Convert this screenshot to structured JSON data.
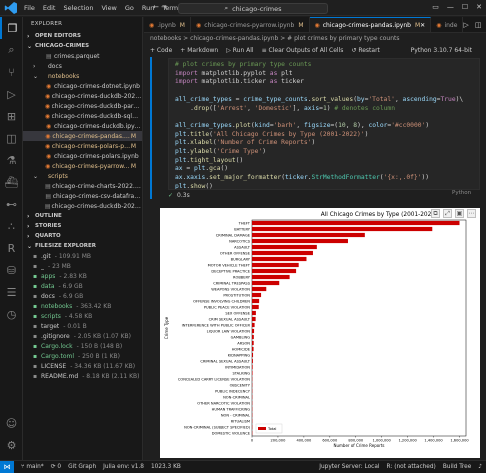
{
  "titlebar": {
    "menu": [
      "File",
      "Edit",
      "Selection",
      "View",
      "Go",
      "Run",
      "Terminal",
      "..."
    ],
    "search": "chicago-crimes"
  },
  "sidebar": {
    "header": "EXPLORER",
    "open_editors": "OPEN EDITORS",
    "project": "CHICAGO-CRIMES",
    "files": [
      {
        "name": "crimes.parquet",
        "indent": 2,
        "kind": "file",
        "badge": ""
      },
      {
        "name": "docs",
        "indent": 1,
        "kind": "folder-closed",
        "badge": ""
      },
      {
        "name": "notebooks",
        "indent": 1,
        "kind": "folder-open",
        "badge": "",
        "status": "mod"
      },
      {
        "name": "chicago-crimes-dotnet.ipynb",
        "indent": 2,
        "kind": "nb",
        "badge": ""
      },
      {
        "name": "chicago-crimes-duckdb-2022.ipynb",
        "indent": 2,
        "kind": "nb",
        "badge": ""
      },
      {
        "name": "chicago-crimes-duckdb-parquet.ip...",
        "indent": 2,
        "kind": "nb",
        "badge": ""
      },
      {
        "name": "chicago-crimes-duckdb-sqlmagic.i...",
        "indent": 2,
        "kind": "nb",
        "badge": ""
      },
      {
        "name": "chicago-crimes-duckdb.ipynb",
        "indent": 2,
        "kind": "nb",
        "badge": ""
      },
      {
        "name": "chicago-crimes-pandas.ipynb",
        "indent": 2,
        "kind": "nb",
        "badge": "M",
        "sel": true
      },
      {
        "name": "chicago-crimes-polars-parqu...",
        "indent": 2,
        "kind": "nb",
        "badge": "M"
      },
      {
        "name": "chicago-crimes-polars.ipynb",
        "indent": 2,
        "kind": "nb",
        "badge": ""
      },
      {
        "name": "chicago-crimes-pyarrow.ipynb",
        "indent": 2,
        "kind": "nb",
        "badge": "M"
      },
      {
        "name": "scripts",
        "indent": 1,
        "kind": "folder-open",
        "badge": "",
        "status": "mod"
      },
      {
        "name": "chicago-crime-charts-2022.malloy",
        "indent": 2,
        "kind": "file",
        "badge": ""
      },
      {
        "name": "chicago-crimes-csv-dataframe.js",
        "indent": 2,
        "kind": "file",
        "badge": ""
      },
      {
        "name": "chicago-crimes-duckdb-2022.malloy",
        "indent": 2,
        "kind": "file",
        "badge": ""
      }
    ],
    "sections": [
      "OUTLINE",
      "STORIES",
      "QUARTO"
    ],
    "filesize_explorer": "FILESIZE EXPLORER",
    "sizes": [
      {
        "name": ".git",
        "size": "109.91 MB",
        "indent": 1
      },
      {
        "name": "_",
        "size": "23 MB",
        "indent": 1
      },
      {
        "name": "apps",
        "size": "2.83 KB",
        "indent": 1,
        "green": true
      },
      {
        "name": "data",
        "size": "6.9 GB",
        "indent": 1,
        "green": true
      },
      {
        "name": "docs",
        "size": "6.9 GB",
        "indent": 1
      },
      {
        "name": "notebooks",
        "size": "363.42 KB",
        "indent": 1,
        "green": true
      },
      {
        "name": "scripts",
        "size": "4.58 KB",
        "indent": 1,
        "green": true
      },
      {
        "name": "target",
        "size": "0.01 B",
        "indent": 1
      },
      {
        "name": ".gitignore",
        "size": "2.05 KB (1.07 KB)",
        "indent": 1
      },
      {
        "name": "Cargo.lock",
        "size": "150 B (148 B)",
        "indent": 1,
        "green": true
      },
      {
        "name": "Cargo.toml",
        "size": "250 B (1 KB)",
        "indent": 1,
        "green": true
      },
      {
        "name": "LICENSE",
        "size": "34.36 KB (11.67 KB)",
        "indent": 1
      },
      {
        "name": "README.md",
        "size": "8.18 KB (2.11 KB)",
        "indent": 1
      }
    ]
  },
  "tabs": [
    {
      "label": ".ipynb",
      "mod": "M",
      "active": false
    },
    {
      "label": "chicago-crimes-pyarrow.ipynb",
      "mod": "M",
      "active": false
    },
    {
      "label": "chicago-crimes-pandas.ipynb",
      "mod": "M",
      "active": true
    },
    {
      "label": "inde",
      "mod": "",
      "active": false
    }
  ],
  "breadcrumb": "notebooks > chicago-crimes-pandas.ipynb > # plot crimes by primary type counts",
  "nb_toolbar": {
    "code": "+ Code",
    "markdown": "+ Markdown",
    "run_all": "▷ Run All",
    "clear": "≡ Clear Outputs of All Cells",
    "restart": "↺ Restart",
    "kernel": "Python 3.10.7 64-bit"
  },
  "cell": {
    "language": "Python",
    "exec_time": "0.3s",
    "lines": [
      [
        [
          "c-com",
          "# plot crimes by primary type counts"
        ]
      ],
      [
        [
          "c-kw",
          "import"
        ],
        [
          "c-def",
          " matplotlib.pyplot "
        ],
        [
          "c-kw",
          "as"
        ],
        [
          "c-def",
          " plt"
        ]
      ],
      [
        [
          "c-kw",
          "import"
        ],
        [
          "c-def",
          " matplotlib.ticker "
        ],
        [
          "c-kw",
          "as"
        ],
        [
          "c-def",
          " ticker"
        ]
      ],
      [
        [
          "c-def",
          ""
        ]
      ],
      [
        [
          "c-var",
          "all_crime_types"
        ],
        [
          "c-def",
          " = "
        ],
        [
          "c-var",
          "crime_type_counts"
        ],
        [
          "c-def",
          "."
        ],
        [
          "c-fn",
          "sort_values"
        ],
        [
          "c-def",
          "("
        ],
        [
          "c-var",
          "by"
        ],
        [
          "c-def",
          "="
        ],
        [
          "c-str",
          "'Total'"
        ],
        [
          "c-def",
          ", "
        ],
        [
          "c-var",
          "ascending"
        ],
        [
          "c-def",
          "="
        ],
        [
          "c-kw",
          "True"
        ],
        [
          "c-def",
          ")\\"
        ]
      ],
      [
        [
          "c-def",
          "    ."
        ],
        [
          "c-fn",
          "drop"
        ],
        [
          "c-def",
          "(["
        ],
        [
          "c-str",
          "'Arrest'"
        ],
        [
          "c-def",
          ", "
        ],
        [
          "c-str",
          "'Domestic'"
        ],
        [
          "c-def",
          "], "
        ],
        [
          "c-var",
          "axis"
        ],
        [
          "c-def",
          "="
        ],
        [
          "c-num",
          "1"
        ],
        [
          "c-def",
          ") "
        ],
        [
          "c-com",
          "# denotes column"
        ]
      ],
      [
        [
          "c-def",
          ""
        ]
      ],
      [
        [
          "c-var",
          "all_crime_types"
        ],
        [
          "c-def",
          "."
        ],
        [
          "c-fn",
          "plot"
        ],
        [
          "c-def",
          "("
        ],
        [
          "c-var",
          "kind"
        ],
        [
          "c-def",
          "="
        ],
        [
          "c-str",
          "'barh'"
        ],
        [
          "c-def",
          ", "
        ],
        [
          "c-var",
          "figsize"
        ],
        [
          "c-def",
          "=("
        ],
        [
          "c-num",
          "10"
        ],
        [
          "c-def",
          ", "
        ],
        [
          "c-num",
          "8"
        ],
        [
          "c-def",
          "), "
        ],
        [
          "c-var",
          "color"
        ],
        [
          "c-def",
          "="
        ],
        [
          "c-str",
          "'#cc0000'"
        ],
        [
          "c-def",
          ")"
        ]
      ],
      [
        [
          "c-var",
          "plt"
        ],
        [
          "c-def",
          "."
        ],
        [
          "c-fn",
          "title"
        ],
        [
          "c-def",
          "("
        ],
        [
          "c-str",
          "'All Chicago Crimes by Type (2001-2022)'"
        ],
        [
          "c-def",
          ")"
        ]
      ],
      [
        [
          "c-var",
          "plt"
        ],
        [
          "c-def",
          "."
        ],
        [
          "c-fn",
          "xlabel"
        ],
        [
          "c-def",
          "("
        ],
        [
          "c-str",
          "'Number of Crime Reports'"
        ],
        [
          "c-def",
          ")"
        ]
      ],
      [
        [
          "c-var",
          "plt"
        ],
        [
          "c-def",
          "."
        ],
        [
          "c-fn",
          "ylabel"
        ],
        [
          "c-def",
          "("
        ],
        [
          "c-str",
          "'Crime Type'"
        ],
        [
          "c-def",
          ")"
        ]
      ],
      [
        [
          "c-var",
          "plt"
        ],
        [
          "c-def",
          "."
        ],
        [
          "c-fn",
          "tight_layout"
        ],
        [
          "c-def",
          "()"
        ]
      ],
      [
        [
          "c-var",
          "ax"
        ],
        [
          "c-def",
          " = "
        ],
        [
          "c-var",
          "plt"
        ],
        [
          "c-def",
          "."
        ],
        [
          "c-fn",
          "gca"
        ],
        [
          "c-def",
          "()"
        ]
      ],
      [
        [
          "c-var",
          "ax"
        ],
        [
          "c-def",
          "."
        ],
        [
          "c-var",
          "xaxis"
        ],
        [
          "c-def",
          "."
        ],
        [
          "c-fn",
          "set_major_formatter"
        ],
        [
          "c-def",
          "("
        ],
        [
          "c-var",
          "ticker"
        ],
        [
          "c-def",
          "."
        ],
        [
          "c-cls",
          "StrMethodFormatter"
        ],
        [
          "c-def",
          "("
        ],
        [
          "c-str",
          "'{x:,.0f}'"
        ],
        [
          "c-def",
          "))"
        ]
      ],
      [
        [
          "c-var",
          "plt"
        ],
        [
          "c-def",
          "."
        ],
        [
          "c-fn",
          "show"
        ],
        [
          "c-def",
          "()"
        ]
      ]
    ]
  },
  "chart_data": {
    "type": "bar",
    "orientation": "horizontal",
    "title": "All Chicago Crimes by Type (2001-2022)",
    "xlabel": "Number of Crime Reports",
    "ylabel": "Crime Type",
    "color": "#cc0000",
    "legend": "Total",
    "legend_position": "bottom-left",
    "xlim": [
      0,
      1650000
    ],
    "xticks": [
      0,
      200000,
      400000,
      600000,
      800000,
      1000000,
      1200000,
      1400000,
      1600000
    ],
    "xtick_labels": [
      "0",
      "200,000",
      "400,000",
      "600,000",
      "800,000",
      "1,000,000",
      "1,200,000",
      "1,400,000",
      "1,600,000"
    ],
    "categories": [
      "THEFT",
      "BATTERY",
      "CRIMINAL DAMAGE",
      "NARCOTICS",
      "ASSAULT",
      "OTHER OFFENSE",
      "BURGLARY",
      "MOTOR VEHICLE THEFT",
      "DECEPTIVE PRACTICE",
      "ROBBERY",
      "CRIMINAL TRESPASS",
      "WEAPONS VIOLATION",
      "PROSTITUTION",
      "OFFENSE INVOLVING CHILDREN",
      "PUBLIC PEACE VIOLATION",
      "SEX OFFENSE",
      "CRIM SEXUAL ASSAULT",
      "INTERFERENCE WITH PUBLIC OFFICER",
      "LIQUOR LAW VIOLATION",
      "GAMBLING",
      "ARSON",
      "HOMICIDE",
      "KIDNAPPING",
      "CRIMINAL SEXUAL ASSAULT",
      "INTIMIDATION",
      "STALKING",
      "CONCEALED CARRY LICENSE VIOLATION",
      "OBSCENITY",
      "PUBLIC INDECENCY",
      "NON-CRIMINAL",
      "OTHER NARCOTIC VIOLATION",
      "HUMAN TRAFFICKING",
      "NON - CRIMINAL",
      "RITUALISM",
      "NON-CRIMINAL (SUBJECT SPECIFIED)",
      "DOMESTIC VIOLENCE"
    ],
    "values": [
      1600000,
      1390000,
      870000,
      740000,
      500000,
      470000,
      420000,
      360000,
      340000,
      290000,
      210000,
      110000,
      70000,
      55000,
      52000,
      30000,
      28000,
      20000,
      16000,
      14000,
      13000,
      12000,
      8000,
      7000,
      5000,
      4000,
      2000,
      1000,
      800,
      400,
      300,
      200,
      100,
      50,
      30,
      10
    ]
  },
  "statusbar": {
    "branch": "main*",
    "sync": "0",
    "gitgraph": "Git Graph",
    "julia": "Julia env: v1.8",
    "size": "1023.3 KB",
    "jupyter": "Jupyter Server: Local",
    "r": "R: (not attached)",
    "build": "Build Tree"
  }
}
